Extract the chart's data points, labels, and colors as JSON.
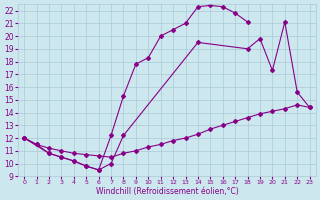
{
  "xlabel": "Windchill (Refroidissement éolien,°C)",
  "bg_color": "#cce8ee",
  "grid_color": "#aac8d8",
  "line_color": "#880088",
  "xlim": [
    -0.5,
    23.5
  ],
  "ylim": [
    9,
    22.5
  ],
  "xticks": [
    0,
    1,
    2,
    3,
    4,
    5,
    6,
    7,
    8,
    9,
    10,
    11,
    12,
    13,
    14,
    15,
    16,
    17,
    18,
    19,
    20,
    21,
    22,
    23
  ],
  "yticks": [
    9,
    10,
    11,
    12,
    13,
    14,
    15,
    16,
    17,
    18,
    19,
    20,
    21,
    22
  ],
  "line1_x": [
    0,
    1,
    2,
    3,
    4,
    5,
    6,
    7,
    8,
    9,
    10,
    11,
    12,
    13,
    14,
    15,
    16,
    17,
    18
  ],
  "line1_y": [
    12.0,
    11.5,
    10.8,
    10.5,
    10.2,
    9.8,
    9.5,
    12.2,
    15.3,
    17.8,
    18.3,
    20.0,
    20.5,
    21.0,
    22.3,
    22.4,
    22.3,
    21.8,
    21.1
  ],
  "line2_x": [
    0,
    2,
    3,
    4,
    5,
    6,
    7,
    8,
    14,
    18,
    19,
    20,
    21,
    22,
    23
  ],
  "line2_y": [
    12.0,
    10.8,
    10.5,
    10.2,
    9.8,
    9.5,
    10.0,
    12.2,
    19.5,
    19.0,
    19.8,
    17.3,
    21.1,
    15.6,
    14.4
  ],
  "line3_x": [
    0,
    1,
    2,
    3,
    4,
    5,
    6,
    7,
    8,
    9,
    10,
    11,
    12,
    13,
    14,
    15,
    16,
    17,
    18,
    19,
    20,
    21,
    22,
    23
  ],
  "line3_y": [
    12.0,
    11.5,
    11.2,
    11.0,
    10.8,
    10.7,
    10.6,
    10.5,
    10.8,
    11.0,
    11.3,
    11.5,
    11.8,
    12.0,
    12.3,
    12.7,
    13.0,
    13.3,
    13.6,
    13.9,
    14.1,
    14.3,
    14.6,
    14.4
  ],
  "marker": "D",
  "markersize": 2,
  "linewidth": 0.8
}
